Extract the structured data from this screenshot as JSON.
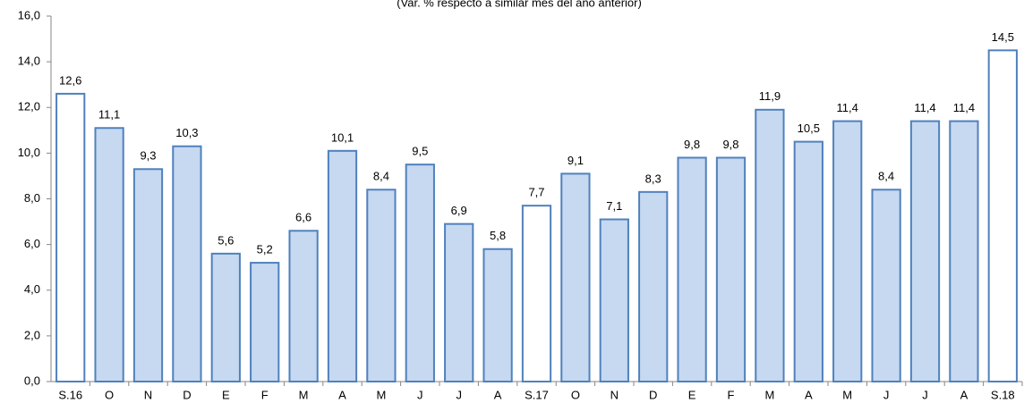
{
  "chart_data": {
    "type": "bar",
    "subtitle": "(Var. % respecto a similar mes del año anterior)",
    "categories": [
      "S.16",
      "O",
      "N",
      "D",
      "E",
      "F",
      "M",
      "A",
      "M",
      "J",
      "J",
      "A",
      "S.17",
      "O",
      "N",
      "D",
      "E",
      "F",
      "M",
      "A",
      "M",
      "J",
      "J",
      "A",
      "S.18"
    ],
    "values": [
      12.6,
      11.1,
      9.3,
      10.3,
      5.6,
      5.2,
      6.6,
      10.1,
      8.4,
      9.5,
      6.9,
      5.8,
      7.7,
      9.1,
      7.1,
      8.3,
      9.8,
      9.8,
      11.9,
      10.5,
      11.4,
      8.4,
      11.4,
      11.4,
      14.5
    ],
    "value_labels": [
      "12,6",
      "11,1",
      "9,3",
      "10,3",
      "5,6",
      "5,2",
      "6,6",
      "10,1",
      "8,4",
      "9,5",
      "6,9",
      "5,8",
      "7,7",
      "9,1",
      "7,1",
      "8,3",
      "9,8",
      "9,8",
      "11,9",
      "10,5",
      "11,4",
      "8,4",
      "11,4",
      "11,4",
      "14,5"
    ],
    "colors": [
      "#ffffff",
      "#c6d9f1",
      "#c6d9f1",
      "#c6d9f1",
      "#c6d9f1",
      "#c6d9f1",
      "#c6d9f1",
      "#c6d9f1",
      "#c6d9f1",
      "#c6d9f1",
      "#c6d9f1",
      "#c6d9f1",
      "#ffffff",
      "#c6d9f1",
      "#c6d9f1",
      "#c6d9f1",
      "#c6d9f1",
      "#c6d9f1",
      "#c6d9f1",
      "#c6d9f1",
      "#c6d9f1",
      "#c6d9f1",
      "#c6d9f1",
      "#c6d9f1",
      "#ffffff"
    ],
    "edge_color": "#4f81bd",
    "ylim": [
      0,
      16
    ],
    "yticks": [
      {
        "value": 0,
        "label": "0,0"
      },
      {
        "value": 2,
        "label": "2,0"
      },
      {
        "value": 4,
        "label": "4,0"
      },
      {
        "value": 6,
        "label": "6,0"
      },
      {
        "value": 8,
        "label": "8,0"
      },
      {
        "value": 10,
        "label": "10,0"
      },
      {
        "value": 12,
        "label": "12,0"
      },
      {
        "value": 14,
        "label": "14,0"
      },
      {
        "value": 16,
        "label": "16,0"
      }
    ],
    "grid": false
  }
}
